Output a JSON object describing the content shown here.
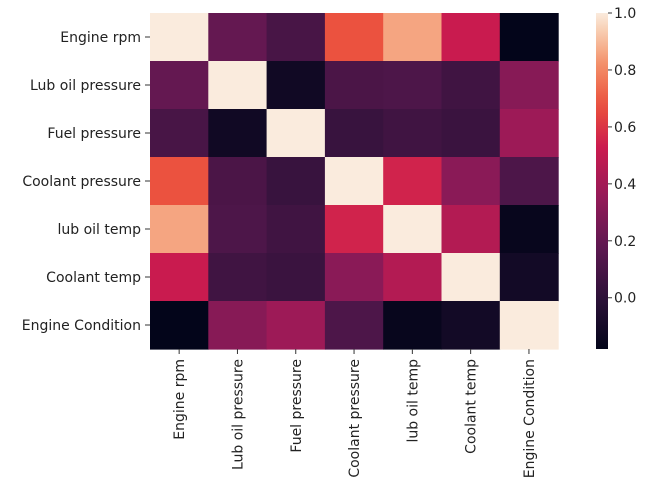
{
  "chart_data": {
    "type": "heatmap",
    "title": "",
    "xlabel": "",
    "ylabel": "",
    "x_labels": [
      "Engine rpm",
      "Lub oil pressure",
      "Fuel pressure",
      "Coolant pressure",
      "lub oil temp",
      "Coolant temp",
      "Engine Condition"
    ],
    "y_labels": [
      "Engine rpm",
      "Lub oil pressure",
      "Fuel pressure",
      "Coolant pressure",
      "lub oil temp",
      "Coolant temp",
      "Engine Condition"
    ],
    "values": [
      [
        1.0,
        0.2,
        0.1,
        0.68,
        0.86,
        0.52,
        -0.18
      ],
      [
        0.2,
        1.0,
        -0.12,
        0.11,
        0.12,
        0.07,
        0.31
      ],
      [
        0.1,
        -0.12,
        1.0,
        0.04,
        0.07,
        0.05,
        0.38
      ],
      [
        0.68,
        0.11,
        0.04,
        1.0,
        0.55,
        0.32,
        0.12
      ],
      [
        0.86,
        0.12,
        0.07,
        0.55,
        1.0,
        0.45,
        -0.16
      ],
      [
        0.52,
        0.07,
        0.05,
        0.32,
        0.45,
        1.0,
        -0.11
      ],
      [
        -0.18,
        0.31,
        0.38,
        0.12,
        -0.16,
        -0.11,
        1.0
      ]
    ],
    "colorbar": {
      "vmin": -0.18,
      "vmax": 1.0,
      "ticks": [
        1.0,
        0.8,
        0.6,
        0.4,
        0.2,
        0.0
      ],
      "tick_labels": [
        "1.0",
        "0.8",
        "0.6",
        "0.4",
        "0.2",
        "0.0"
      ],
      "colormap": "rocket"
    },
    "grid": false,
    "legend": "colorbar-right"
  }
}
